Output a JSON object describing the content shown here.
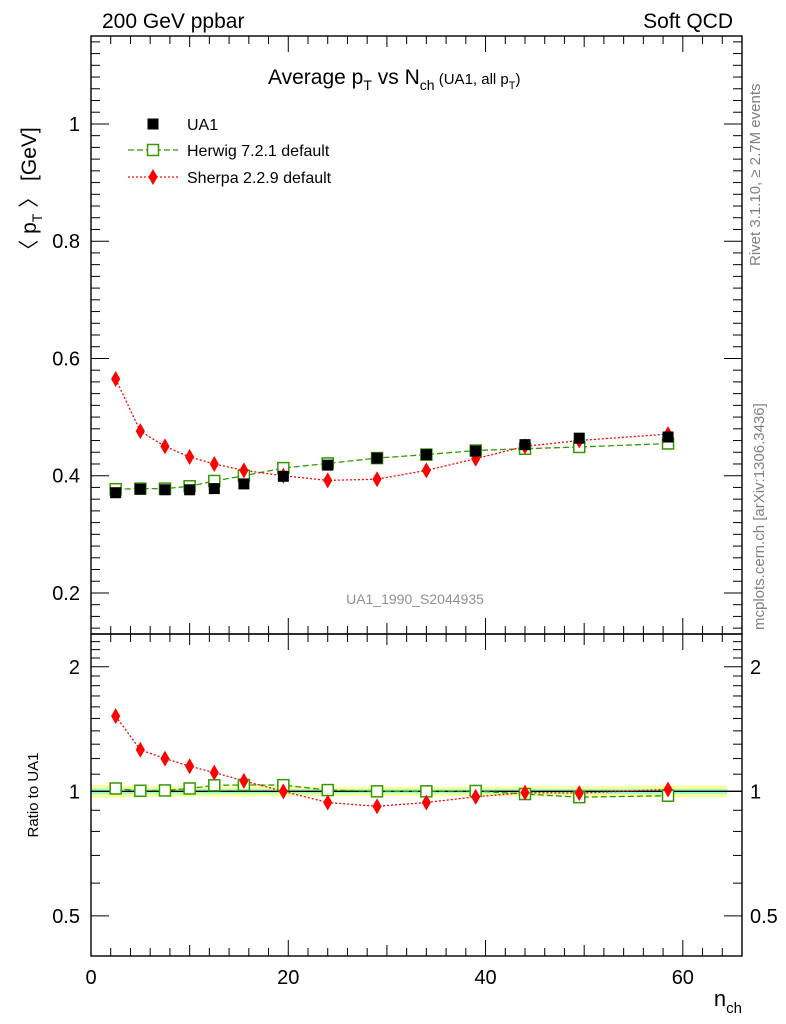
{
  "header": {
    "left": "200 GeV ppbar",
    "right": "Soft QCD"
  },
  "side_text": {
    "top": "Rivet 3.1.10, ≥ 2.7M events",
    "bottom": "mcplots.cern.ch [arXiv:1306.3436]"
  },
  "chart_data": [
    {
      "type": "scatter",
      "title": {
        "pre": "Average p",
        "sub1": "T",
        "mid": " vs N",
        "sub2": "ch",
        "small": " (UA1, all p",
        "sub3": "T",
        "close": ")"
      },
      "ylabel": {
        "pre": "〈 p",
        "sub": "T",
        "post": " 〉 [GeV]"
      },
      "watermark": "UA1_1990_S2044935",
      "ylim": [
        0.13,
        1.15
      ],
      "xlim": [
        0,
        66
      ],
      "yticks": [
        0.2,
        0.4,
        0.6,
        0.8,
        1
      ],
      "ytick_labels": [
        "0.2",
        "0.4",
        "0.6",
        "0.8",
        "1"
      ],
      "legend_position": "top-left",
      "series": [
        {
          "name": "UA1",
          "color": "#000000",
          "marker": "filled-square",
          "x": [
            2.5,
            5,
            7.5,
            10,
            12.5,
            15.5,
            19.5,
            24,
            29,
            34,
            39,
            44,
            49.5,
            58.5
          ],
          "y": [
            0.371,
            0.377,
            0.376,
            0.376,
            0.378,
            0.386,
            0.399,
            0.418,
            0.43,
            0.436,
            0.442,
            0.453,
            0.464,
            0.466
          ],
          "err": [
            0.006,
            0.005,
            0.005,
            0.005,
            0.005,
            0.005,
            0.005,
            0.005,
            0.005,
            0.005,
            0.005,
            0.006,
            0.006,
            0.007
          ]
        },
        {
          "name": "Herwig 7.2.1 default",
          "color": "#339900",
          "marker": "open-square",
          "line": "dashed",
          "x": [
            2.5,
            5,
            7.5,
            10,
            12.5,
            15.5,
            19.5,
            24,
            29,
            34,
            39,
            44,
            49.5,
            58.5
          ],
          "y": [
            0.377,
            0.378,
            0.378,
            0.382,
            0.391,
            0.4,
            0.413,
            0.421,
            0.43,
            0.436,
            0.443,
            0.446,
            0.449,
            0.455
          ]
        },
        {
          "name": "Sherpa 2.2.9 default",
          "color": "#ff0000",
          "marker": "filled-diamond",
          "line": "dotted",
          "x": [
            2.5,
            5,
            7.5,
            10,
            12.5,
            15.5,
            19.5,
            24,
            29,
            34,
            39,
            44,
            49.5,
            58.5
          ],
          "y": [
            0.565,
            0.476,
            0.45,
            0.432,
            0.42,
            0.409,
            0.4,
            0.392,
            0.394,
            0.409,
            0.429,
            0.45,
            0.46,
            0.471
          ]
        }
      ]
    },
    {
      "type": "scatter",
      "ylabel": "Ratio to UA1",
      "xlabel": {
        "pre": "n",
        "sub": "ch"
      },
      "xlim": [
        0,
        66
      ],
      "xticks": [
        0,
        20,
        40,
        60
      ],
      "xtick_labels": [
        "0",
        "20",
        "40",
        "60"
      ],
      "ylim": [
        0.4,
        2.4
      ],
      "yscale": "log",
      "yticks": [
        0.5,
        1,
        2
      ],
      "ytick_labels": [
        "0.5",
        "1",
        "2"
      ],
      "reference_line": 1,
      "band_colors": [
        "#ffff99",
        "#99ffcc"
      ],
      "series": [
        {
          "name": "Herwig 7.2.1 default",
          "color": "#339900",
          "marker": "open-square",
          "line": "dashed",
          "x": [
            2.5,
            5,
            7.5,
            10,
            12.5,
            15.5,
            19.5,
            24,
            29,
            34,
            39,
            44,
            49.5,
            58.5
          ],
          "y": [
            1.016,
            1.003,
            1.005,
            1.016,
            1.034,
            1.036,
            1.035,
            1.007,
            1.0,
            1.0,
            1.002,
            0.985,
            0.968,
            0.976
          ]
        },
        {
          "name": "Sherpa 2.2.9 default",
          "color": "#ff0000",
          "marker": "filled-diamond",
          "line": "dotted",
          "x": [
            2.5,
            5,
            7.5,
            10,
            12.5,
            15.5,
            19.5,
            24,
            29,
            34,
            39,
            44,
            49.5,
            58.5
          ],
          "y": [
            1.52,
            1.26,
            1.2,
            1.15,
            1.11,
            1.06,
            1.0,
            0.94,
            0.92,
            0.94,
            0.97,
            0.993,
            0.99,
            1.01
          ]
        }
      ]
    }
  ]
}
